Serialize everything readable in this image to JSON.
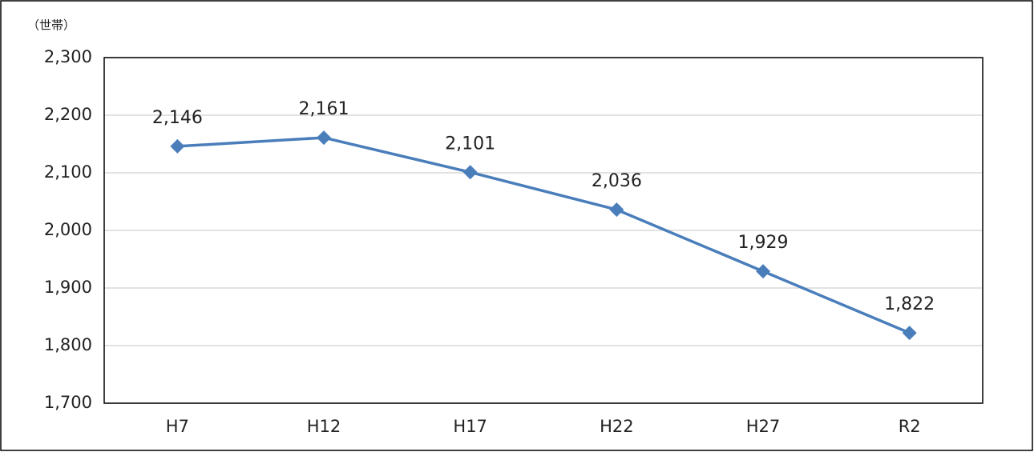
{
  "chart_data": {
    "type": "line",
    "unit_label": "（世帯）",
    "categories": [
      "H7",
      "H12",
      "H17",
      "H22",
      "H27",
      "R2"
    ],
    "values": [
      2146,
      2161,
      2101,
      2036,
      1929,
      1822
    ],
    "value_labels": [
      "2,146",
      "2,161",
      "2,101",
      "2,036",
      "1,929",
      "1,822"
    ],
    "color": "#4a7ebb",
    "ylim": [
      1700,
      2300
    ],
    "yticks": [
      {
        "value": 1700,
        "label": "1,700"
      },
      {
        "value": 1800,
        "label": "1,800"
      },
      {
        "value": 1900,
        "label": "1,900"
      },
      {
        "value": 2000,
        "label": "2,000"
      },
      {
        "value": 2100,
        "label": "2,100"
      },
      {
        "value": 2200,
        "label": "2,200"
      },
      {
        "value": 2300,
        "label": "2,300"
      }
    ],
    "grid": true
  }
}
